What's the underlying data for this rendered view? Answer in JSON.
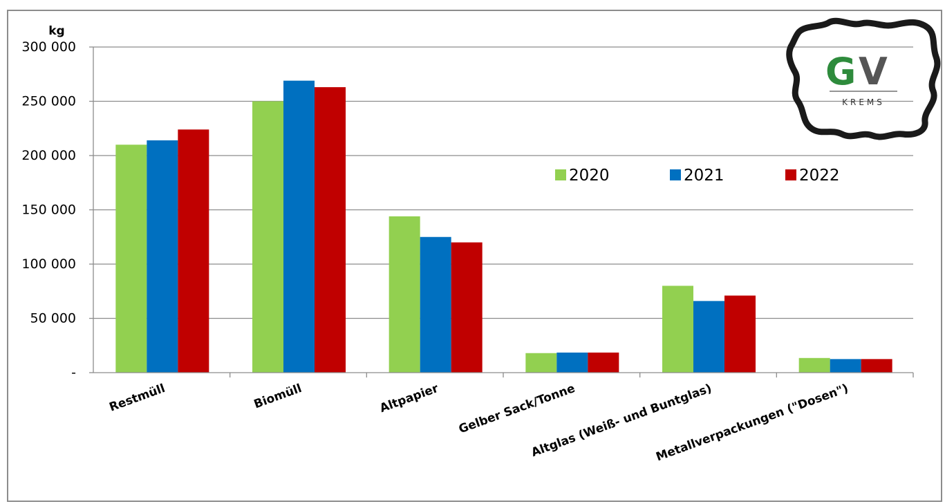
{
  "chart_data": {
    "type": "bar",
    "ylabel": "kg",
    "ylim": [
      0,
      300000
    ],
    "yticks": [
      0,
      50000,
      100000,
      150000,
      200000,
      250000,
      300000
    ],
    "ytick_labels": [
      "-",
      "50 000",
      "100 000",
      "150 000",
      "200 000",
      "250 000",
      "300 000"
    ],
    "grid": true,
    "legend_position": "right",
    "categories": [
      "Restmüll",
      "Biomüll",
      "Altpapier",
      "Gelber Sack/Tonne",
      "Altglas (Weiß- und Buntglas)",
      "Metallverpackungen (\"Dosen\")"
    ],
    "series": [
      {
        "name": "2020",
        "color": "#92d050",
        "values": [
          210000,
          250000,
          144000,
          18000,
          80000,
          13500
        ]
      },
      {
        "name": "2021",
        "color": "#0070c0",
        "values": [
          214000,
          269000,
          125000,
          18500,
          66000,
          12500
        ]
      },
      {
        "name": "2022",
        "color": "#c00000",
        "values": [
          224000,
          263000,
          120000,
          18500,
          71000,
          12500
        ]
      }
    ]
  },
  "logo": {
    "text": "GV",
    "subtext": "KREMS",
    "colors": {
      "g": "#2e8b3c",
      "v": "#555555"
    }
  }
}
